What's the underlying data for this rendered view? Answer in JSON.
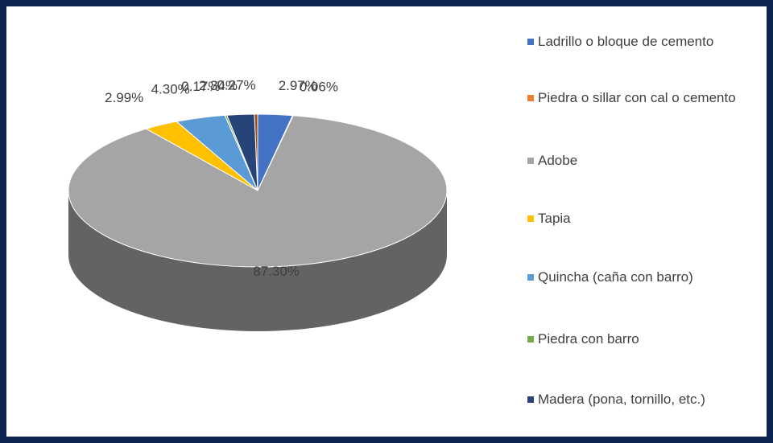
{
  "chart_data": {
    "type": "pie3d",
    "categories": [
      "Ladrillo o bloque de cemento",
      "Piedra o sillar con cal o cemento",
      "Adobe",
      "Tapia",
      "Quincha (caña con barro)",
      "Piedra con barro",
      "Madera (pona, tornillo, etc.)",
      null
    ],
    "values": [
      2.97,
      0.06,
      87.3,
      2.99,
      4.3,
      0.17,
      2.34,
      0.27
    ],
    "value_labels": [
      "2.97%",
      "0.06%",
      "87.30%",
      "2.99%",
      "4.30%",
      "0.17%",
      "2.34%",
      "0.27%"
    ],
    "colors": [
      "#4472c4",
      "#ed7d31",
      "#a5a5a5",
      "#ffc000",
      "#5b9bd5",
      "#70ad47",
      "#264478",
      "#9e480e"
    ],
    "legend": "right"
  }
}
